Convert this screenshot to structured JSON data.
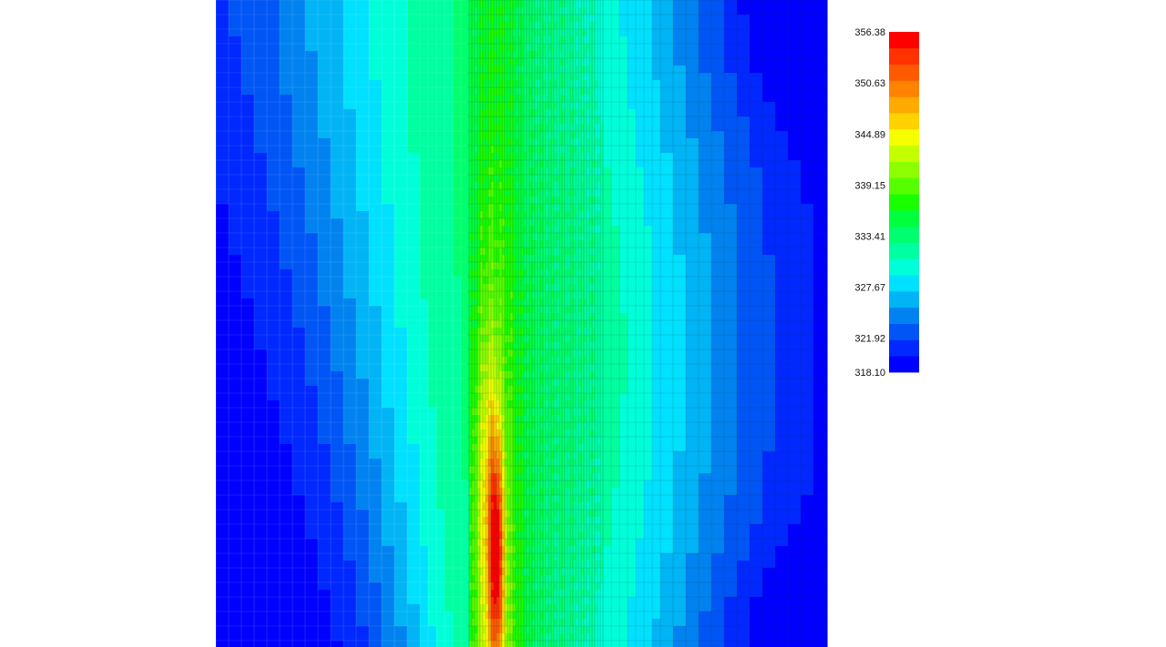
{
  "chart_data": {
    "type": "heatmap",
    "title": "",
    "xlabel": "",
    "ylabel": "",
    "colorbar": {
      "min": 318.1,
      "max": 356.38,
      "levels": 21,
      "tick_labels": [
        "356.38",
        "350.63",
        "344.89",
        "339.15",
        "333.41",
        "327.67",
        "321.92",
        "318.10"
      ],
      "colors": [
        "#0000ff",
        "#0028ff",
        "#0055f5",
        "#0082f0",
        "#00b4f5",
        "#00e1ff",
        "#00ffd9",
        "#00ffa0",
        "#00ff6e",
        "#00ff3c",
        "#1aff00",
        "#55ff00",
        "#8cff00",
        "#c3ff00",
        "#f5ff00",
        "#ffd200",
        "#ffaa00",
        "#ff8200",
        "#ff5a00",
        "#ff3200",
        "#ff0000"
      ]
    },
    "field_description": "Temperature field; hot vertical band peaking near lower-left of the refined central strip, cooling outward",
    "hotspot": {
      "peak_value": 356.38
    }
  }
}
